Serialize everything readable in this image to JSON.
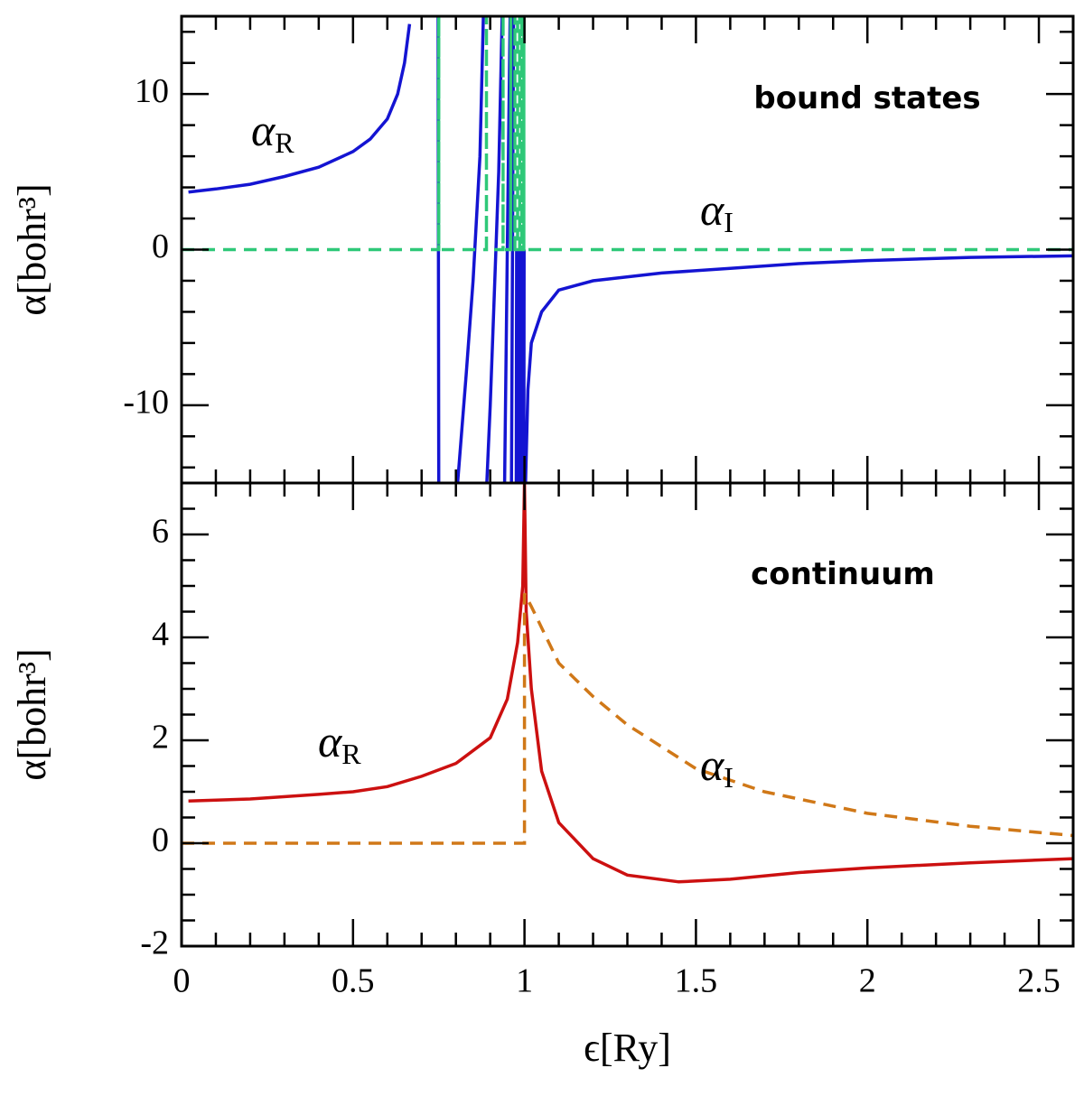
{
  "chart_data": [
    {
      "type": "line",
      "ylabel": "α[bohr³]",
      "xlim": [
        0,
        2.6
      ],
      "ylim": [
        -15,
        15
      ],
      "xticks": [
        0,
        0.5,
        1,
        1.5,
        2,
        2.5
      ],
      "xticks_minor": [
        0.1,
        0.2,
        0.3,
        0.4,
        0.6,
        0.7,
        0.8,
        0.9,
        1.1,
        1.2,
        1.3,
        1.4,
        1.6,
        1.7,
        1.8,
        1.9,
        2.1,
        2.2,
        2.3,
        2.4,
        2.6
      ],
      "yticks": [
        -10,
        0,
        10
      ],
      "yticks_minor": [
        -14,
        -12,
        -8,
        -6,
        -4,
        -2,
        2,
        4,
        6,
        8,
        12,
        14
      ],
      "annotations": [
        {
          "text": "α",
          "sub": "R"
        },
        {
          "text": "bound states"
        },
        {
          "text": "α",
          "sub": "I"
        }
      ],
      "series": [
        {
          "name": "αR",
          "color": "#1414d2",
          "dash": false,
          "x": [
            0.02,
            0.1,
            0.2,
            0.3,
            0.4,
            0.5,
            0.55,
            0.6,
            0.63,
            0.65,
            0.665,
            null,
            0.748,
            0.75,
            null,
            0.805,
            0.83,
            0.85,
            0.87,
            0.88,
            null,
            0.89,
            0.9,
            0.91,
            0.925,
            0.935,
            null,
            0.942,
            0.95,
            0.958,
            null,
            0.962,
            0.968,
            null,
            0.976,
            0.977,
            null,
            0.981,
            0.982,
            null,
            0.986,
            0.987,
            null,
            0.99,
            0.991,
            null,
            0.994,
            0.995,
            null,
            0.998,
            0.999,
            null,
            1.003,
            1.01,
            1.02,
            1.05,
            1.1,
            1.2,
            1.4,
            1.6,
            1.8,
            2.0,
            2.3,
            2.6
          ],
          "values": [
            3.7,
            3.9,
            4.2,
            4.7,
            5.3,
            6.3,
            7.1,
            8.4,
            10,
            12,
            14.5,
            null,
            15,
            -15,
            null,
            -15,
            -8,
            -2,
            6,
            15,
            null,
            -15,
            -10,
            -4,
            5,
            15,
            null,
            -15,
            0,
            15,
            null,
            -15,
            15,
            null,
            -15,
            0,
            null,
            -15,
            0,
            null,
            -15,
            0,
            null,
            -15,
            0,
            null,
            -15,
            0,
            null,
            -15,
            0,
            null,
            -15,
            -9,
            -6,
            -4,
            -2.6,
            -2,
            -1.5,
            -1.2,
            -0.9,
            -0.7,
            -0.5,
            -0.4
          ]
        },
        {
          "name": "αI",
          "color": "#2ec878",
          "dash": true,
          "x": [
            0,
            0.75,
            0.75,
            0.75,
            0.889,
            0.889,
            0.889,
            0.9375,
            0.9375,
            0.9375,
            0.96,
            0.96,
            0.96,
            0.972,
            0.972,
            0.972,
            0.98,
            0.98,
            0.98,
            0.986,
            0.986,
            0.986,
            0.992,
            0.992,
            0.992,
            0.998,
            0.998,
            0.998,
            2.6
          ],
          "values": [
            0,
            0,
            15,
            0,
            0,
            15,
            0,
            0,
            15,
            0,
            0,
            15,
            0,
            0,
            15,
            0,
            0,
            15,
            0,
            0,
            15,
            0,
            0,
            15,
            0,
            0,
            15,
            0,
            0
          ]
        }
      ]
    },
    {
      "type": "line",
      "ylabel": "α[bohr³]",
      "xlabel": "ϵ[Ry]",
      "xlim": [
        0,
        2.6
      ],
      "ylim": [
        -2,
        7
      ],
      "xticks": [
        0,
        0.5,
        1,
        1.5,
        2,
        2.5
      ],
      "xticks_minor": [
        0.1,
        0.2,
        0.3,
        0.4,
        0.6,
        0.7,
        0.8,
        0.9,
        1.1,
        1.2,
        1.3,
        1.4,
        1.6,
        1.7,
        1.8,
        1.9,
        2.1,
        2.2,
        2.3,
        2.4,
        2.6
      ],
      "yticks": [
        -2,
        0,
        2,
        4,
        6
      ],
      "yticks_minor": [
        -1.5,
        -1,
        -0.5,
        0.5,
        1,
        1.5,
        2.5,
        3,
        3.5,
        4.5,
        5,
        5.5,
        6.5
      ],
      "annotations": [
        {
          "text": "α",
          "sub": "R"
        },
        {
          "text": "continuum"
        },
        {
          "text": "α",
          "sub": "I"
        }
      ],
      "series": [
        {
          "name": "αR",
          "color": "#cc1010",
          "dash": false,
          "x": [
            0.02,
            0.2,
            0.4,
            0.5,
            0.6,
            0.7,
            0.8,
            0.9,
            0.95,
            0.98,
            0.995,
            1.0,
            1.005,
            1.02,
            1.05,
            1.1,
            1.2,
            1.3,
            1.45,
            1.6,
            1.8,
            2.0,
            2.3,
            2.6
          ],
          "values": [
            0.82,
            0.86,
            0.95,
            1.0,
            1.1,
            1.3,
            1.55,
            2.05,
            2.8,
            3.9,
            5.0,
            7,
            4.5,
            3.0,
            1.4,
            0.4,
            -0.3,
            -0.62,
            -0.75,
            -0.7,
            -0.57,
            -0.48,
            -0.38,
            -0.3
          ]
        },
        {
          "name": "αI",
          "color": "#d07818",
          "dash": true,
          "x": [
            0,
            1.0,
            1.0,
            1.02,
            1.1,
            1.2,
            1.3,
            1.5,
            1.7,
            2.0,
            2.3,
            2.6
          ],
          "values": [
            0,
            0,
            4.85,
            4.6,
            3.5,
            2.85,
            2.3,
            1.45,
            1.0,
            0.58,
            0.33,
            0.15
          ]
        }
      ]
    }
  ]
}
